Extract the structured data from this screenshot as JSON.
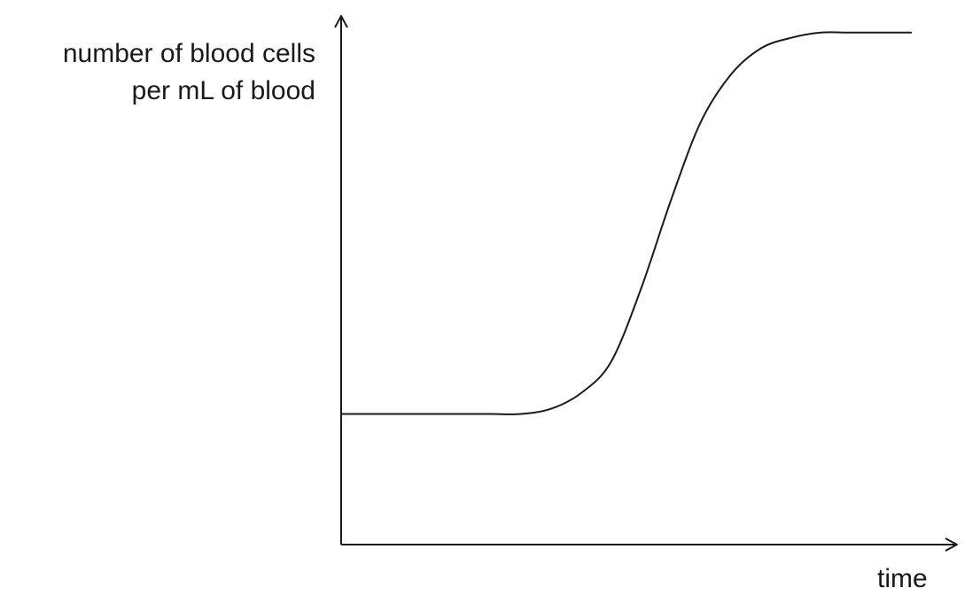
{
  "chart_data": {
    "type": "line",
    "ylabel_lines": [
      "number of blood cells",
      "per mL of blood"
    ],
    "xlabel": "time",
    "axis_ticks": false,
    "grid": false,
    "legend": false,
    "series": [
      {
        "shape": "sigmoid",
        "x": [
          0,
          5,
          10,
          15,
          20,
          25,
          30,
          35,
          40,
          45,
          50,
          55,
          60,
          65,
          70,
          75,
          80,
          85,
          90,
          95
        ],
        "y": [
          25,
          25,
          25,
          25,
          25,
          25,
          25,
          26,
          29,
          35,
          49,
          66,
          81,
          90,
          95,
          97,
          98,
          98,
          98,
          98
        ]
      }
    ],
    "xlim": [
      0,
      100
    ],
    "ylim": [
      0,
      100
    ],
    "colors": {
      "line": "#1a1a1a",
      "axis": "#1a1a1a"
    }
  }
}
